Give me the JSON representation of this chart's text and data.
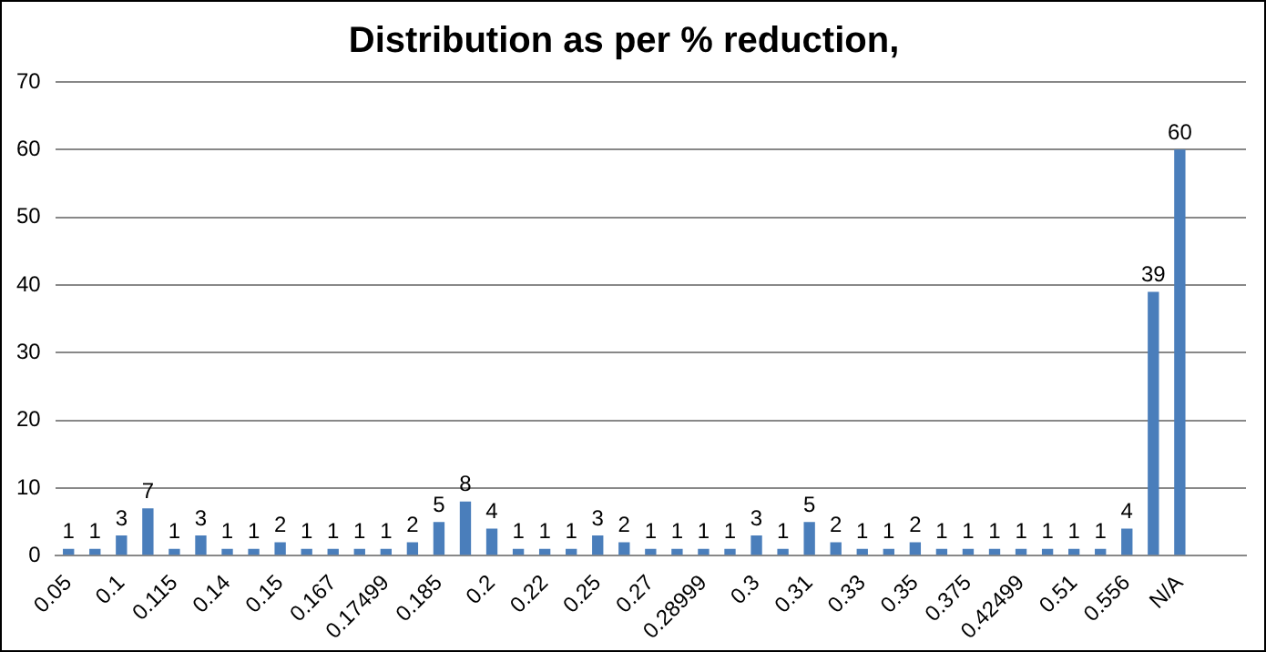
{
  "chart_data": {
    "type": "bar",
    "title": "Distribution as per % reduction,",
    "categories": [
      "0.05",
      null,
      "0.1",
      null,
      "0.115",
      null,
      "0.14",
      null,
      "0.15",
      null,
      "0.167",
      null,
      "0.17499",
      null,
      "0.185",
      null,
      "0.2",
      null,
      "0.22",
      null,
      "0.25",
      null,
      "0.27",
      null,
      "0.28999",
      null,
      "0.3",
      null,
      "0.31",
      null,
      "0.33",
      null,
      "0.35",
      null,
      "0.375",
      null,
      "0.42499",
      null,
      "0.51",
      null,
      "0.556",
      null,
      "N/A",
      null,
      null
    ],
    "values": [
      1,
      1,
      3,
      7,
      1,
      3,
      1,
      1,
      2,
      1,
      1,
      1,
      1,
      2,
      5,
      8,
      4,
      1,
      1,
      1,
      3,
      2,
      1,
      1,
      1,
      1,
      3,
      1,
      5,
      2,
      1,
      1,
      2,
      1,
      1,
      1,
      1,
      1,
      1,
      1,
      4,
      39,
      60,
      null,
      null
    ],
    "color": "#4a7ebb",
    "ylim": [
      0,
      70
    ],
    "yticks": [
      0,
      10,
      20,
      30,
      40,
      50,
      60,
      70
    ],
    "grid": "y",
    "data_labels": true
  }
}
